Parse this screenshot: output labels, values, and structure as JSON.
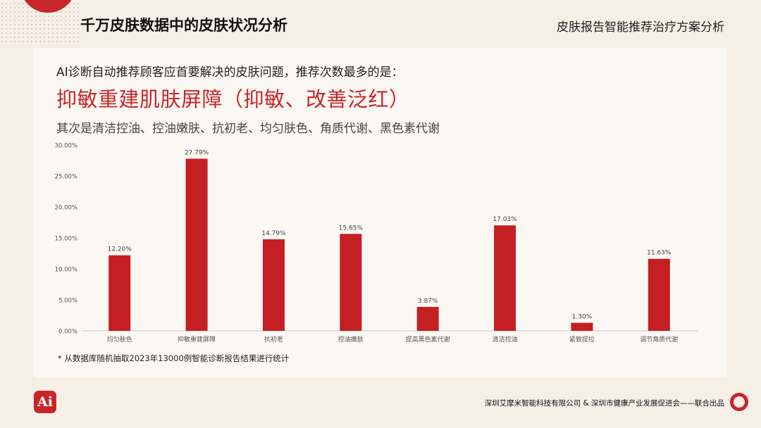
{
  "header": {
    "title": "千万皮肤数据中的皮肤状况分析",
    "right_title": "皮肤报告智能推荐治疗方案分析"
  },
  "intro": "AI诊断自动推荐顾客应首要解决的皮肤问题，推荐次数最多的是：",
  "headline": "抑敏重建肌肤屏障（抑敏、改善泛红）",
  "subline": "其次是清洁控油、控油嫩肤、抗初老、均匀肤色、角质代谢、黑色素代谢",
  "footnote": "* 从数据库随机抽取2023年13000例智能诊断报告结果进行统计",
  "footer": {
    "org": "深圳艾摩米智能科技有限公司 & 深圳市健康产业发展促进会——联合出品",
    "logo_text": "Ai"
  },
  "colors": {
    "accent": "#c7262b",
    "bar": "#c41f23"
  },
  "chart_data": {
    "type": "bar",
    "categories": [
      "均匀肤色",
      "抑敏重建屏障",
      "抗初老",
      "控油嫩肤",
      "提高黑色素代谢",
      "清洁控油",
      "紧致提拉",
      "调节角质代谢"
    ],
    "values": [
      12.2,
      27.79,
      14.79,
      15.65,
      3.87,
      17.03,
      1.3,
      11.63
    ],
    "value_labels": [
      "12.20%",
      "27.79%",
      "14.79%",
      "15.65%",
      "3.87%",
      "17.03%",
      "1.30%",
      "11.63%"
    ],
    "yticks": [
      0,
      5,
      10,
      15,
      20,
      25,
      30
    ],
    "ytick_labels": [
      "0.00%",
      "5.00%",
      "10.00%",
      "15.00%",
      "20.00%",
      "25.00%",
      "30.00%"
    ],
    "ylim": [
      0,
      30
    ],
    "title": "",
    "xlabel": "",
    "ylabel": "",
    "grid": false
  }
}
